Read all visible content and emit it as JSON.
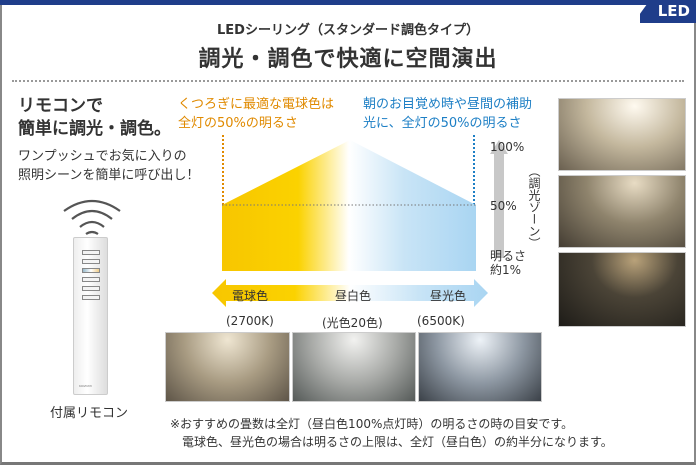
{
  "badge": "LED",
  "subtitle": "LEDシーリング（スタンダード調色タイプ）",
  "title": "調光・調色で快適に空間演出",
  "left": {
    "lead": [
      "リモコンで",
      "簡単に調光・調色。"
    ],
    "desc": [
      "ワンプッシュでお気に入りの",
      "照明シーンを簡単に呼び出し！"
    ],
    "remote_caption": "付属リモコン",
    "remote_brand": "KOIZUMI"
  },
  "warm_note": [
    "くつろぎに最適な電球色は",
    "全灯の50%の明るさ"
  ],
  "cool_note": [
    "朝のお目覚め時や昼間の補助",
    "光に、全灯の50%の明るさ"
  ],
  "brightness": {
    "top": "100%",
    "mid": "50%",
    "bottom": [
      "明るさ",
      "約1%"
    ],
    "zone": "（調光ゾーン）"
  },
  "colors": {
    "warm_label": "電球色",
    "mid_label": "昼白色",
    "cool_label": "昼光色",
    "warm_k": "(2700K)",
    "mid_k": "(光色20色)",
    "cool_k": "(6500K)",
    "warm": "#f7c600",
    "cool": "#a9d5f2",
    "accent": "#1f3d8a"
  },
  "notes": [
    "※おすすめの畳数は全灯（昼白色100%点灯時）の明るさの時の目安です。",
    "電球色、昼光色の場合は明るさの上限は、全灯（昼白色）の約半分になります。"
  ]
}
